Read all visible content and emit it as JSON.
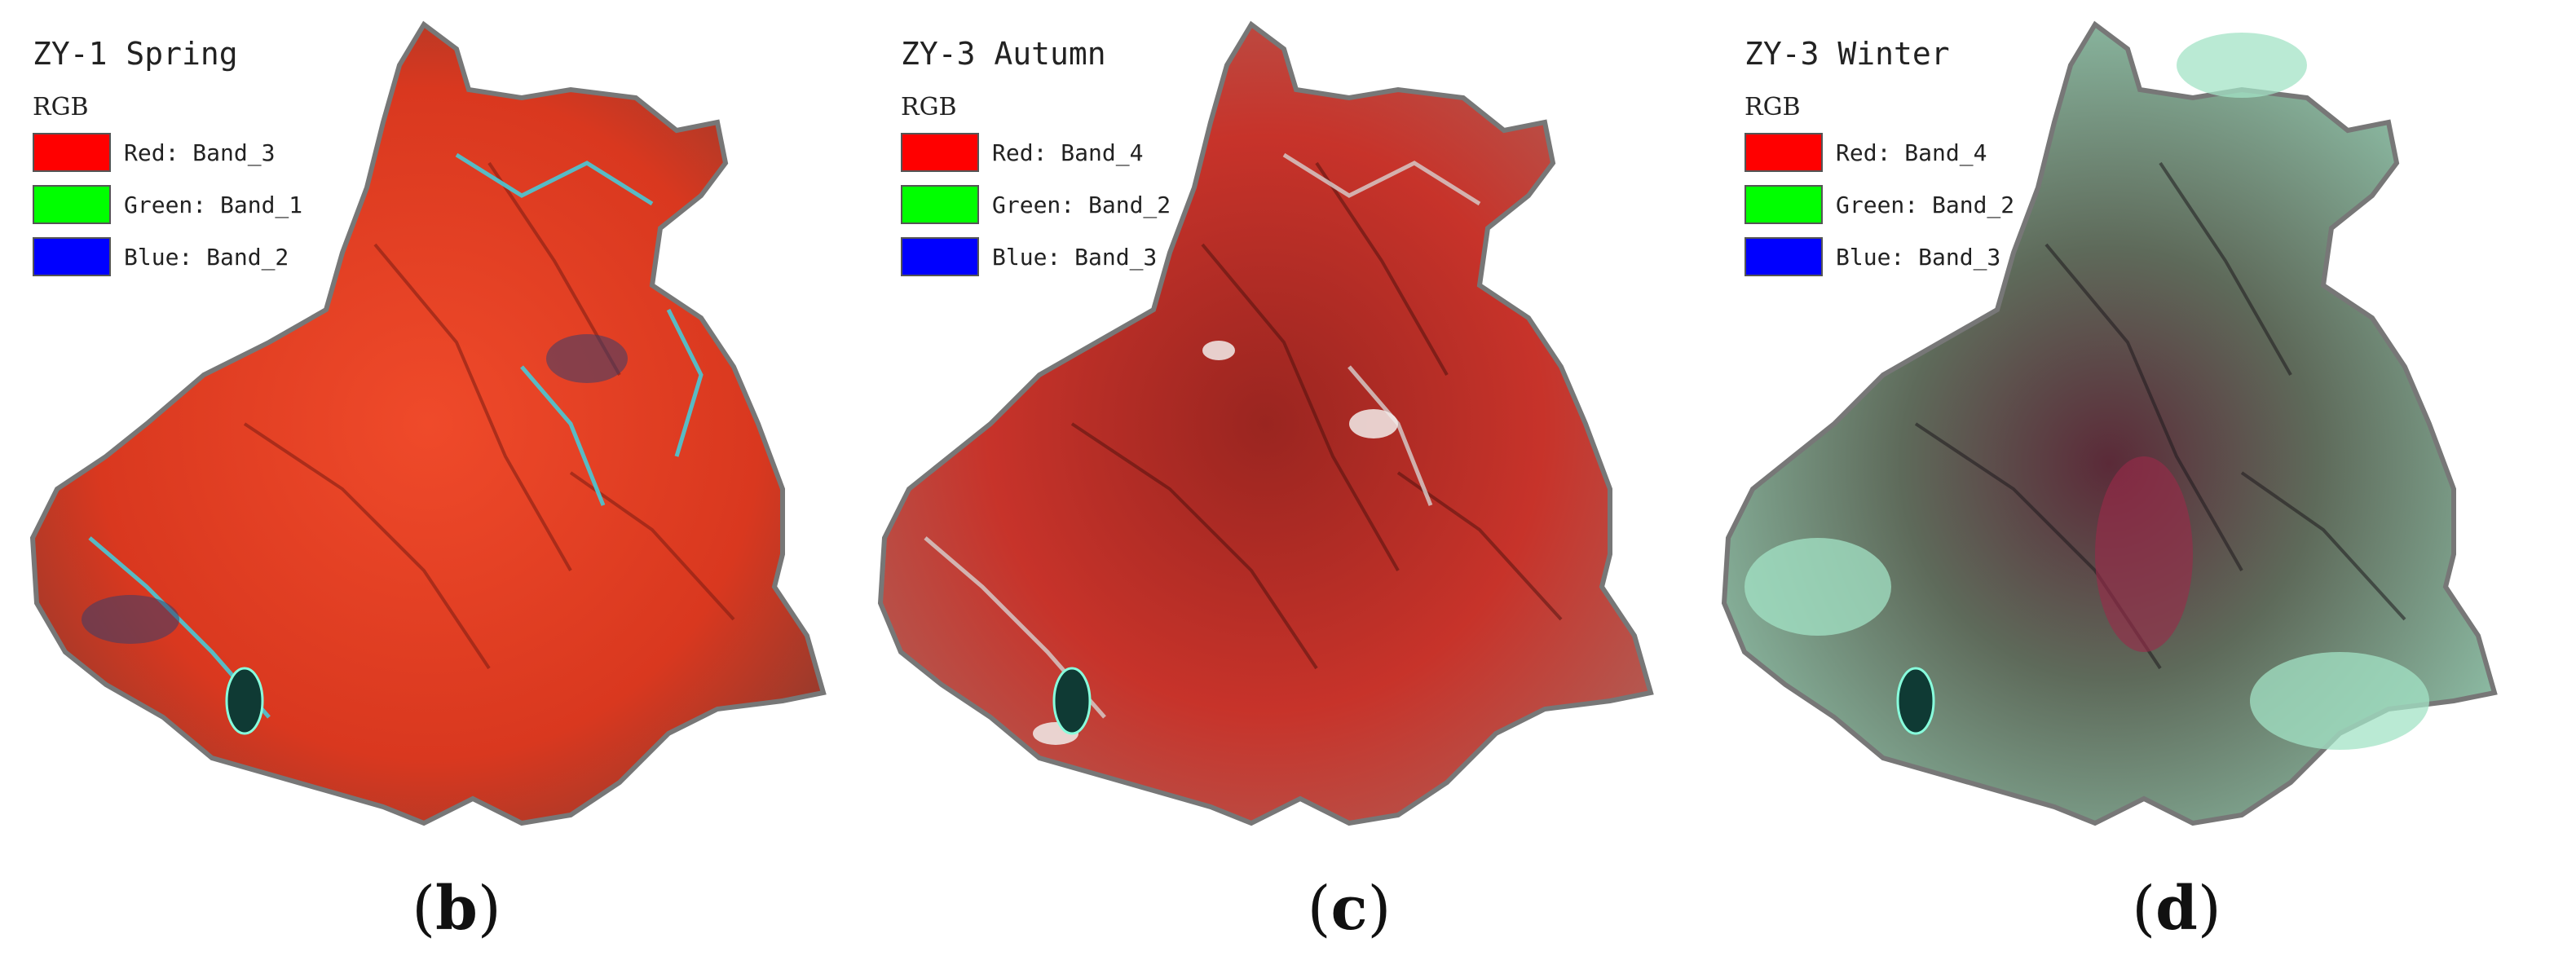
{
  "panels": [
    {
      "title": "ZY-1 Spring",
      "rgb_label": "RGB",
      "bands": [
        {
          "label": "Red: Band_3",
          "color": "#ff0000"
        },
        {
          "label": "Green: Band_1",
          "color": "#00ff00"
        },
        {
          "label": "Blue: Band_2",
          "color": "#0000ff"
        }
      ],
      "caption_open": "(",
      "caption_letter": "b",
      "caption_close": ")",
      "palette": {
        "base": "#e23a22",
        "dark": "#8a2418",
        "accent": "#49c9d6"
      }
    },
    {
      "title": "ZY-3 Autumn",
      "rgb_label": "RGB",
      "bands": [
        {
          "label": "Red: Band_4",
          "color": "#ff0000"
        },
        {
          "label": "Green: Band_2",
          "color": "#00ff00"
        },
        {
          "label": "Blue: Band_3",
          "color": "#0000ff"
        }
      ],
      "caption_open": "(",
      "caption_letter": "c",
      "caption_close": ")",
      "palette": {
        "base": "#c9332a",
        "dark": "#6e1a16",
        "accent": "#d8d0cc"
      }
    },
    {
      "title": "ZY-3 Winter",
      "rgb_label": "RGB",
      "bands": [
        {
          "label": "Red: Band_4",
          "color": "#ff0000"
        },
        {
          "label": "Green: Band_2",
          "color": "#00ff00"
        },
        {
          "label": "Blue: Band_3",
          "color": "#0000ff"
        }
      ],
      "caption_open": "(",
      "caption_letter": "d",
      "caption_close": ")",
      "palette": {
        "base": "#6f8f7c",
        "dark": "#5a2636",
        "accent": "#9fe0c4"
      }
    }
  ]
}
